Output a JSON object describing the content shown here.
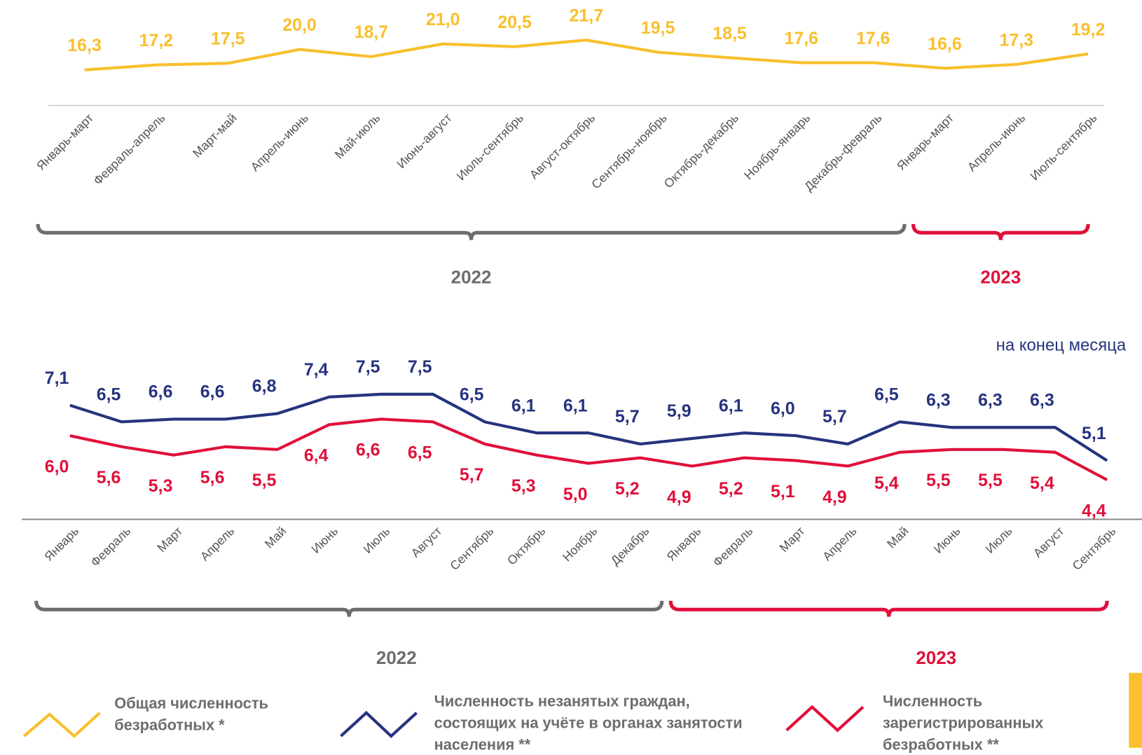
{
  "chart_data": [
    {
      "type": "line",
      "categories": [
        "Январь-март",
        "Февраль-апрель",
        "Март-май",
        "Апрель-июнь",
        "Май-июль",
        "Июнь-август",
        "Июль-сентябрь",
        "Август-октябрь",
        "Сентябрь-ноябрь",
        "Октябрь-декабрь",
        "Ноябрь-январь",
        "Декабрь-февраль",
        "Январь-март",
        "Апрель-июнь",
        "Июль-сентябрь"
      ],
      "series": [
        {
          "name": "Общая численность безработных *",
          "color": "#f9bf2c",
          "values": [
            16.3,
            17.2,
            17.5,
            20.0,
            18.7,
            21.0,
            20.5,
            21.7,
            19.5,
            18.5,
            17.6,
            17.6,
            16.6,
            17.3,
            19.2
          ],
          "value_labels": [
            "16,3",
            "17,2",
            "17,5",
            "20,0",
            "18,7",
            "21,0",
            "20,5",
            "21,7",
            "19,5",
            "18,5",
            "17,6",
            "17,6",
            "16,6",
            "17,3",
            "19,2"
          ]
        }
      ],
      "groups": [
        {
          "label": "2022",
          "count": 12,
          "color": "#6d6d6d"
        },
        {
          "label": "2023",
          "count": 3,
          "color": "#e0103a"
        }
      ]
    },
    {
      "type": "line",
      "subtitle": "на конец месяца",
      "categories": [
        "Январь",
        "Февраль",
        "Март",
        "Апрель",
        "Май",
        "Июнь",
        "Июль",
        "Август",
        "Сентябрь",
        "Октябрь",
        "Ноябрь",
        "Декабрь",
        "Январь",
        "Февраль",
        "Март",
        "Апрель",
        "Май",
        "Июнь",
        "Июль",
        "Август",
        "Сентябрь"
      ],
      "series": [
        {
          "name": "Численность  незанятых граждан, состоящих на учёте в органах занятости населения **",
          "color": "#26337e",
          "values": [
            7.1,
            6.5,
            6.6,
            6.6,
            6.8,
            7.4,
            7.5,
            7.5,
            6.5,
            6.1,
            6.1,
            5.7,
            5.9,
            6.1,
            6.0,
            5.7,
            6.5,
            6.3,
            6.3,
            6.3,
            5.1
          ],
          "value_labels": [
            "7,1",
            "6,5",
            "6,6",
            "6,6",
            "6,8",
            "7,4",
            "7,5",
            "7,5",
            "6,5",
            "6,1",
            "6,1",
            "5,7",
            "5,9",
            "6,1",
            "6,0",
            "5,7",
            "6,5",
            "6,3",
            "6,3",
            "6,3",
            "5,1"
          ]
        },
        {
          "name": "Численность зарегистрированных безработных **",
          "color": "#e0103a",
          "values": [
            6.0,
            5.6,
            5.3,
            5.6,
            5.5,
            6.4,
            6.6,
            6.5,
            5.7,
            5.3,
            5.0,
            5.2,
            4.9,
            5.2,
            5.1,
            4.9,
            5.4,
            5.5,
            5.5,
            5.4,
            4.4
          ],
          "value_labels": [
            "6,0",
            "5,6",
            "5,3",
            "5,6",
            "5,5",
            "6,4",
            "6,6",
            "6,5",
            "5,7",
            "5,3",
            "5,0",
            "5,2",
            "4,9",
            "5,2",
            "5,1",
            "4,9",
            "5,4",
            "5,5",
            "5,5",
            "5,4",
            "4,4"
          ]
        }
      ],
      "groups": [
        {
          "label": "2022",
          "count": 12,
          "color": "#6d6d6d"
        },
        {
          "label": "2023",
          "count": 9,
          "color": "#e0103a"
        }
      ]
    }
  ]
}
